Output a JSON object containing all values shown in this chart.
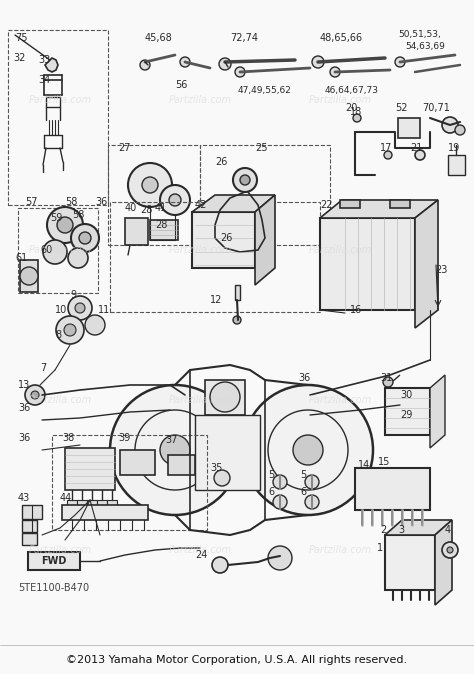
{
  "bg_color": "#f8f8f8",
  "diagram_color": "#2a2a2a",
  "copyright_text": "©2013 Yamaha Motor Corporation, U.S.A. All rights reserved.",
  "part_number": "5TE1100-B470",
  "watermark_text": "Partzilla.com",
  "fig_width": 4.74,
  "fig_height": 6.74,
  "dpi": 100
}
